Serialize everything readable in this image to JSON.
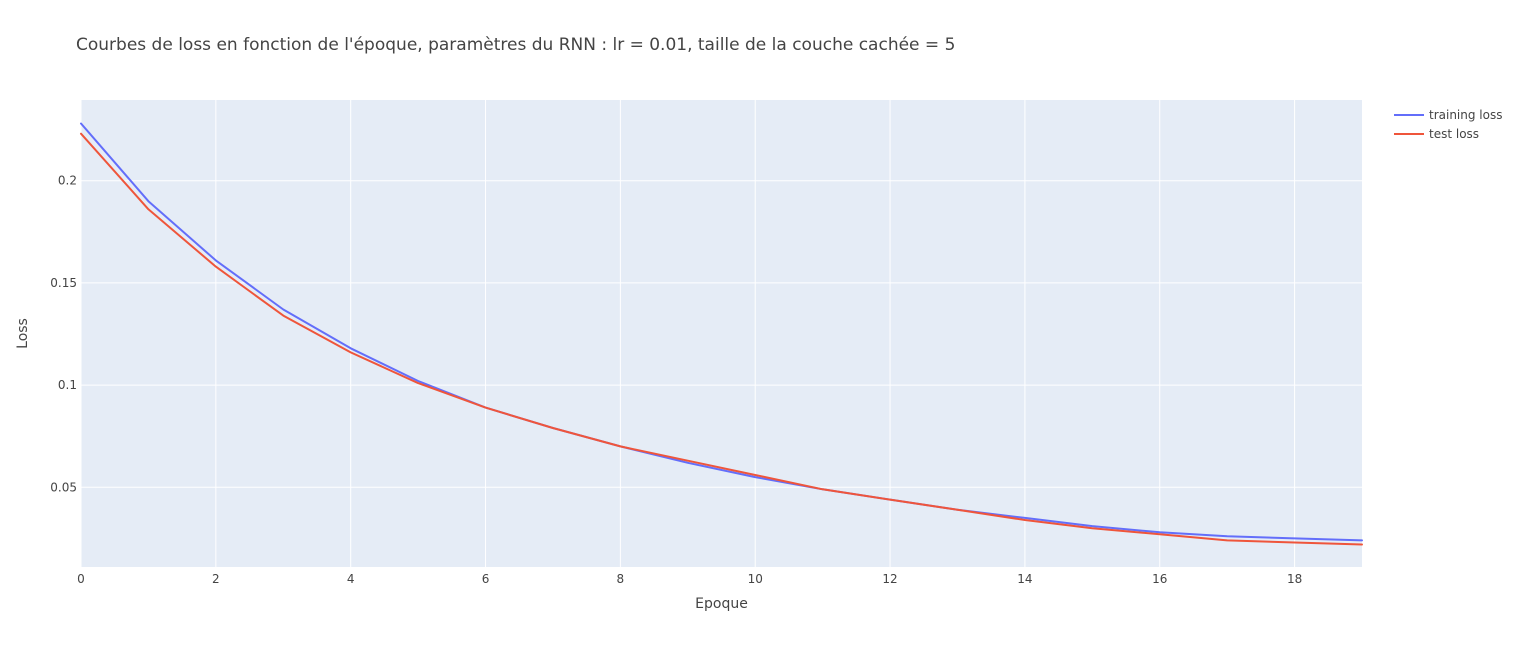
{
  "chart_data": {
    "type": "line",
    "title": "Courbes de loss en fonction de l'époque, paramètres du RNN : lr = 0.01, taille de la couche cachée = 5",
    "xlabel": "Epoque",
    "ylabel": "Loss",
    "xlim": [
      0,
      19
    ],
    "ylim": [
      0.011,
      0.2395
    ],
    "x_ticks": [
      0,
      2,
      4,
      6,
      8,
      10,
      12,
      14,
      16,
      18
    ],
    "x_tick_labels": [
      "0",
      "2",
      "4",
      "6",
      "8",
      "10",
      "12",
      "14",
      "16",
      "18"
    ],
    "y_ticks": [
      0.05,
      0.1,
      0.15,
      0.2
    ],
    "y_tick_labels": [
      "0.05",
      "0.1",
      "0.15",
      "0.2"
    ],
    "grid": true,
    "legend_position": "top-right",
    "x": [
      0,
      1,
      2,
      3,
      4,
      5,
      6,
      7,
      8,
      9,
      10,
      11,
      12,
      13,
      14,
      15,
      16,
      17,
      18,
      19
    ],
    "series": [
      {
        "name": "training loss",
        "color": "#636efa",
        "values": [
          0.228,
          0.19,
          0.161,
          0.137,
          0.118,
          0.102,
          0.089,
          0.079,
          0.07,
          0.062,
          0.055,
          0.049,
          0.044,
          0.039,
          0.035,
          0.031,
          0.028,
          0.026,
          0.025,
          0.024
        ]
      },
      {
        "name": "test loss",
        "color": "#ef553b",
        "values": [
          0.223,
          0.186,
          0.158,
          0.134,
          0.116,
          0.101,
          0.089,
          0.079,
          0.07,
          0.063,
          0.056,
          0.049,
          0.044,
          0.039,
          0.034,
          0.03,
          0.027,
          0.024,
          0.023,
          0.022
        ]
      }
    ]
  }
}
